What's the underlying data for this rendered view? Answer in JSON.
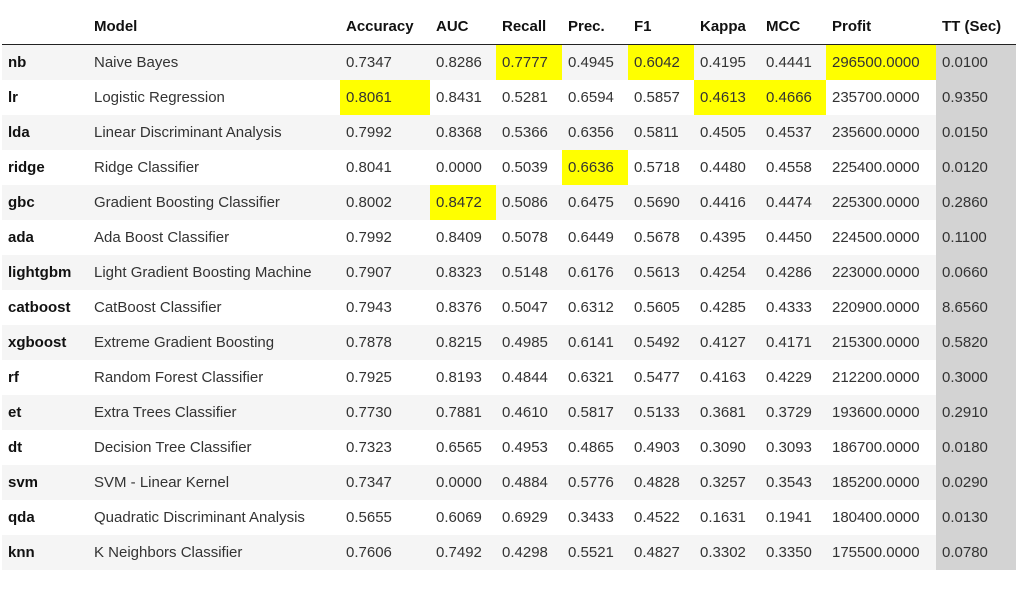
{
  "table": {
    "columns": [
      "",
      "Model",
      "Accuracy",
      "AUC",
      "Recall",
      "Prec.",
      "F1",
      "Kappa",
      "MCC",
      "Profit",
      "TT (Sec)"
    ],
    "rows": [
      [
        "nb",
        "Naive Bayes",
        "0.7347",
        "0.8286",
        "0.7777",
        "0.4945",
        "0.6042",
        "0.4195",
        "0.4441",
        "296500.0000",
        "0.0100"
      ],
      [
        "lr",
        "Logistic Regression",
        "0.8061",
        "0.8431",
        "0.5281",
        "0.6594",
        "0.5857",
        "0.4613",
        "0.4666",
        "235700.0000",
        "0.9350"
      ],
      [
        "lda",
        "Linear Discriminant Analysis",
        "0.7992",
        "0.8368",
        "0.5366",
        "0.6356",
        "0.5811",
        "0.4505",
        "0.4537",
        "235600.0000",
        "0.0150"
      ],
      [
        "ridge",
        "Ridge Classifier",
        "0.8041",
        "0.0000",
        "0.5039",
        "0.6636",
        "0.5718",
        "0.4480",
        "0.4558",
        "225400.0000",
        "0.0120"
      ],
      [
        "gbc",
        "Gradient Boosting Classifier",
        "0.8002",
        "0.8472",
        "0.5086",
        "0.6475",
        "0.5690",
        "0.4416",
        "0.4474",
        "225300.0000",
        "0.2860"
      ],
      [
        "ada",
        "Ada Boost Classifier",
        "0.7992",
        "0.8409",
        "0.5078",
        "0.6449",
        "0.5678",
        "0.4395",
        "0.4450",
        "224500.0000",
        "0.1100"
      ],
      [
        "lightgbm",
        "Light Gradient Boosting Machine",
        "0.7907",
        "0.8323",
        "0.5148",
        "0.6176",
        "0.5613",
        "0.4254",
        "0.4286",
        "223000.0000",
        "0.0660"
      ],
      [
        "catboost",
        "CatBoost Classifier",
        "0.7943",
        "0.8376",
        "0.5047",
        "0.6312",
        "0.5605",
        "0.4285",
        "0.4333",
        "220900.0000",
        "8.6560"
      ],
      [
        "xgboost",
        "Extreme Gradient Boosting",
        "0.7878",
        "0.8215",
        "0.4985",
        "0.6141",
        "0.5492",
        "0.4127",
        "0.4171",
        "215300.0000",
        "0.5820"
      ],
      [
        "rf",
        "Random Forest Classifier",
        "0.7925",
        "0.8193",
        "0.4844",
        "0.6321",
        "0.5477",
        "0.4163",
        "0.4229",
        "212200.0000",
        "0.3000"
      ],
      [
        "et",
        "Extra Trees Classifier",
        "0.7730",
        "0.7881",
        "0.4610",
        "0.5817",
        "0.5133",
        "0.3681",
        "0.3729",
        "193600.0000",
        "0.2910"
      ],
      [
        "dt",
        "Decision Tree Classifier",
        "0.7323",
        "0.6565",
        "0.4953",
        "0.4865",
        "0.4903",
        "0.3090",
        "0.3093",
        "186700.0000",
        "0.0180"
      ],
      [
        "svm",
        "SVM - Linear Kernel",
        "0.7347",
        "0.0000",
        "0.4884",
        "0.5776",
        "0.4828",
        "0.3257",
        "0.3543",
        "185200.0000",
        "0.0290"
      ],
      [
        "qda",
        "Quadratic Discriminant Analysis",
        "0.5655",
        "0.6069",
        "0.6929",
        "0.3433",
        "0.4522",
        "0.1631",
        "0.1941",
        "180400.0000",
        "0.0130"
      ],
      [
        "knn",
        "K Neighbors Classifier",
        "0.7606",
        "0.7492",
        "0.4298",
        "0.5521",
        "0.4827",
        "0.3302",
        "0.3350",
        "175500.0000",
        "0.0780"
      ]
    ],
    "highlight_color": "#ffff00",
    "highlighted": [
      [
        0,
        4
      ],
      [
        0,
        6
      ],
      [
        0,
        9
      ],
      [
        1,
        2
      ],
      [
        1,
        7
      ],
      [
        1,
        8
      ],
      [
        3,
        5
      ],
      [
        4,
        3
      ]
    ],
    "shaded_column": 10,
    "shade_color": "#d3d3d3"
  }
}
